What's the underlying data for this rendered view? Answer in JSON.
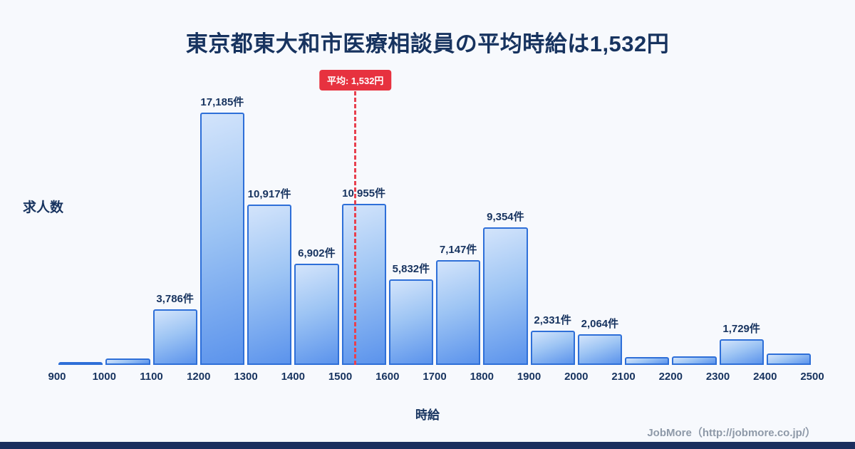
{
  "page": {
    "title": "東京都東大和市医療相談員の平均時給は1,532円",
    "footer": "JobMore（http://jobmore.co.jp/）"
  },
  "chart_data": {
    "type": "bar",
    "title": "東京都東大和市医療相談員の平均時給は1,532円",
    "xlabel": "時給",
    "ylabel": "求人数",
    "bin_edges": [
      900,
      1000,
      1100,
      1200,
      1300,
      1400,
      1500,
      1600,
      1700,
      1800,
      1900,
      2000,
      2100,
      2200,
      2300,
      2400,
      2500
    ],
    "values": [
      150,
      450,
      3786,
      17185,
      10917,
      6902,
      10955,
      5832,
      7147,
      9354,
      2331,
      2064,
      550,
      600,
      1729,
      800
    ],
    "bar_labels": [
      "",
      "",
      "3,786件",
      "17,185件",
      "10,917件",
      "6,902件",
      "10,955件",
      "5,832件",
      "7,147件",
      "9,354件",
      "2,331件",
      "2,064件",
      "",
      "",
      "1,729件",
      ""
    ],
    "average": {
      "value": 1532,
      "label": "平均: 1,532円"
    },
    "xlim": [
      900,
      2500
    ],
    "ylim": [
      0,
      20000
    ],
    "grid": false,
    "legend": "none",
    "colors": {
      "bar_fill_light": "#d3e4fb",
      "bar_fill_dark": "#5b93ec",
      "bar_border": "#2e6fd8",
      "average_red": "#e7323f",
      "text_navy": "#17335f",
      "background": "#f7f9fd",
      "footer_gray": "#8e99a8",
      "bottom_bar_navy": "#1b2f5e"
    }
  }
}
